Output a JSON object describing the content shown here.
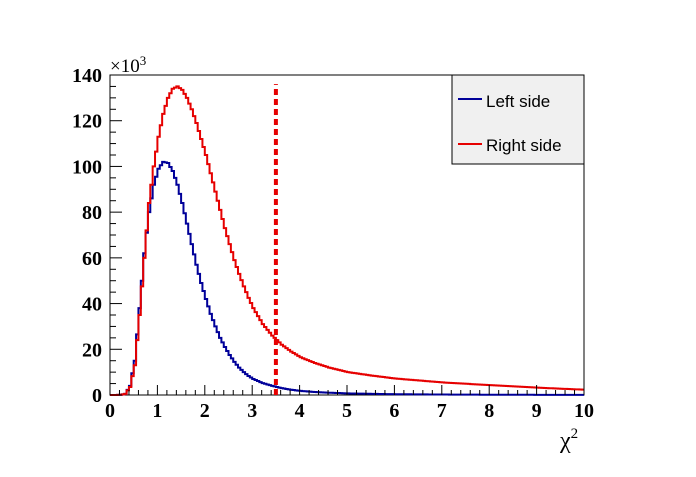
{
  "chart_data": {
    "type": "histogram-step",
    "xlabel": "χ",
    "xlabel_sup": "2",
    "xlim": [
      0,
      10
    ],
    "ylim": [
      0,
      140000
    ],
    "x_ticks": [
      "0",
      "1",
      "2",
      "3",
      "4",
      "5",
      "6",
      "7",
      "8",
      "9",
      "10"
    ],
    "x_tick_values": [
      0,
      1,
      2,
      3,
      4,
      5,
      6,
      7,
      8,
      9,
      10
    ],
    "y_ticks": [
      "0",
      "20",
      "40",
      "60",
      "80",
      "100",
      "120",
      "140"
    ],
    "y_tick_values": [
      0,
      20000,
      40000,
      60000,
      80000,
      100000,
      120000,
      140000
    ],
    "y_exponent_prefix": "×10",
    "y_exponent_power": "3",
    "grid": false,
    "legend_position": "top-right",
    "cut_line": {
      "x": 3.5,
      "color": "#e60000",
      "style": "dashed"
    },
    "series": [
      {
        "name": "Left side",
        "color": "#000099",
        "x": [
          0.0,
          0.1,
          0.2,
          0.3,
          0.4,
          0.5,
          0.6,
          0.7,
          0.8,
          0.9,
          1.0,
          1.1,
          1.2,
          1.3,
          1.4,
          1.5,
          1.6,
          1.7,
          1.8,
          1.9,
          2.0,
          2.1,
          2.2,
          2.3,
          2.4,
          2.5,
          2.6,
          2.7,
          2.8,
          2.9,
          3.0,
          3.2,
          3.4,
          3.6,
          3.8,
          4.0,
          4.3,
          4.6,
          5.0,
          5.5,
          6.0,
          7.0,
          8.0,
          9.0,
          10.0
        ],
        "values": [
          0,
          0,
          100,
          500,
          4000,
          15000,
          38000,
          62000,
          80000,
          92000,
          99000,
          102000,
          101500,
          98000,
          92000,
          84000,
          75000,
          66000,
          57000,
          49000,
          42000,
          35500,
          30000,
          25000,
          21000,
          17500,
          14500,
          12000,
          10000,
          8300,
          7000,
          5200,
          4000,
          3000,
          2300,
          1800,
          1300,
          1000,
          700,
          500,
          350,
          200,
          120,
          80,
          50
        ]
      },
      {
        "name": "Right side",
        "color": "#e60000",
        "x": [
          0.0,
          0.1,
          0.2,
          0.3,
          0.4,
          0.5,
          0.6,
          0.7,
          0.8,
          0.9,
          1.0,
          1.1,
          1.2,
          1.3,
          1.4,
          1.5,
          1.6,
          1.7,
          1.8,
          1.9,
          2.0,
          2.1,
          2.2,
          2.3,
          2.4,
          2.5,
          2.6,
          2.7,
          2.8,
          2.9,
          3.0,
          3.2,
          3.4,
          3.6,
          3.8,
          4.0,
          4.3,
          4.6,
          5.0,
          5.5,
          6.0,
          7.0,
          8.0,
          9.0,
          10.0
        ],
        "values": [
          0,
          0,
          100,
          500,
          3500,
          13000,
          35000,
          60000,
          84000,
          100000,
          113000,
          123000,
          130000,
          134000,
          135000,
          133500,
          130000,
          125000,
          119000,
          112000,
          105000,
          97000,
          89000,
          81000,
          73000,
          66000,
          59000,
          53000,
          47500,
          42500,
          38000,
          31000,
          26000,
          22000,
          19000,
          16500,
          14000,
          12000,
          10000,
          8500,
          7200,
          5500,
          4300,
          3200,
          2300
        ]
      }
    ]
  }
}
